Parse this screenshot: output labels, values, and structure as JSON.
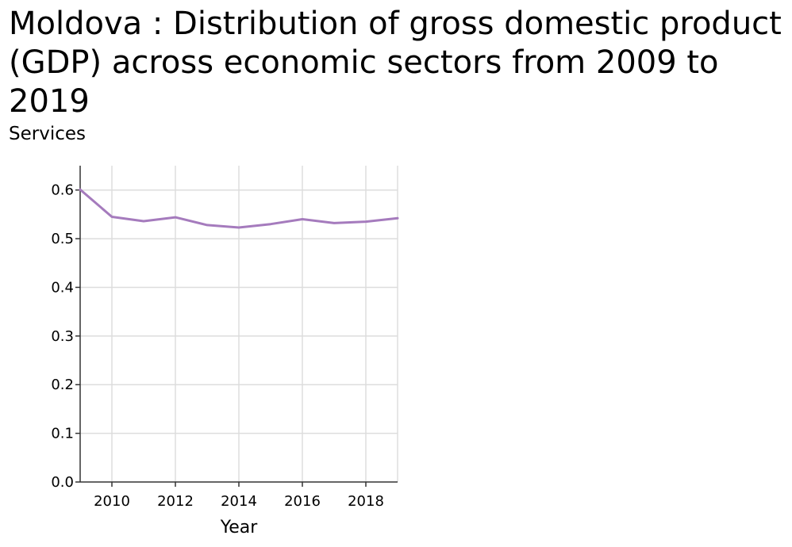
{
  "chart_data": {
    "type": "line",
    "title": "Moldova : Distribution of gross domestic product (GDP) across economic sectors from 2009 to 2019",
    "ylabel": "Services",
    "xlabel": "Year",
    "xlim": [
      2009,
      2019
    ],
    "ylim": [
      0,
      0.65
    ],
    "x_ticks": [
      2010,
      2012,
      2014,
      2016,
      2018
    ],
    "y_ticks": [
      0.0,
      0.1,
      0.2,
      0.3,
      0.4,
      0.5,
      0.6
    ],
    "y_tick_labels": [
      "0.0",
      "0.1",
      "0.2",
      "0.3",
      "0.4",
      "0.5",
      "0.6"
    ],
    "grid": true,
    "series": [
      {
        "color": "#a57bbd",
        "x": [
          2009,
          2010,
          2011,
          2012,
          2013,
          2014,
          2015,
          2016,
          2017,
          2018,
          2019
        ],
        "values": [
          0.601,
          0.545,
          0.536,
          0.544,
          0.528,
          0.523,
          0.53,
          0.54,
          0.532,
          0.535,
          0.542
        ]
      }
    ]
  }
}
